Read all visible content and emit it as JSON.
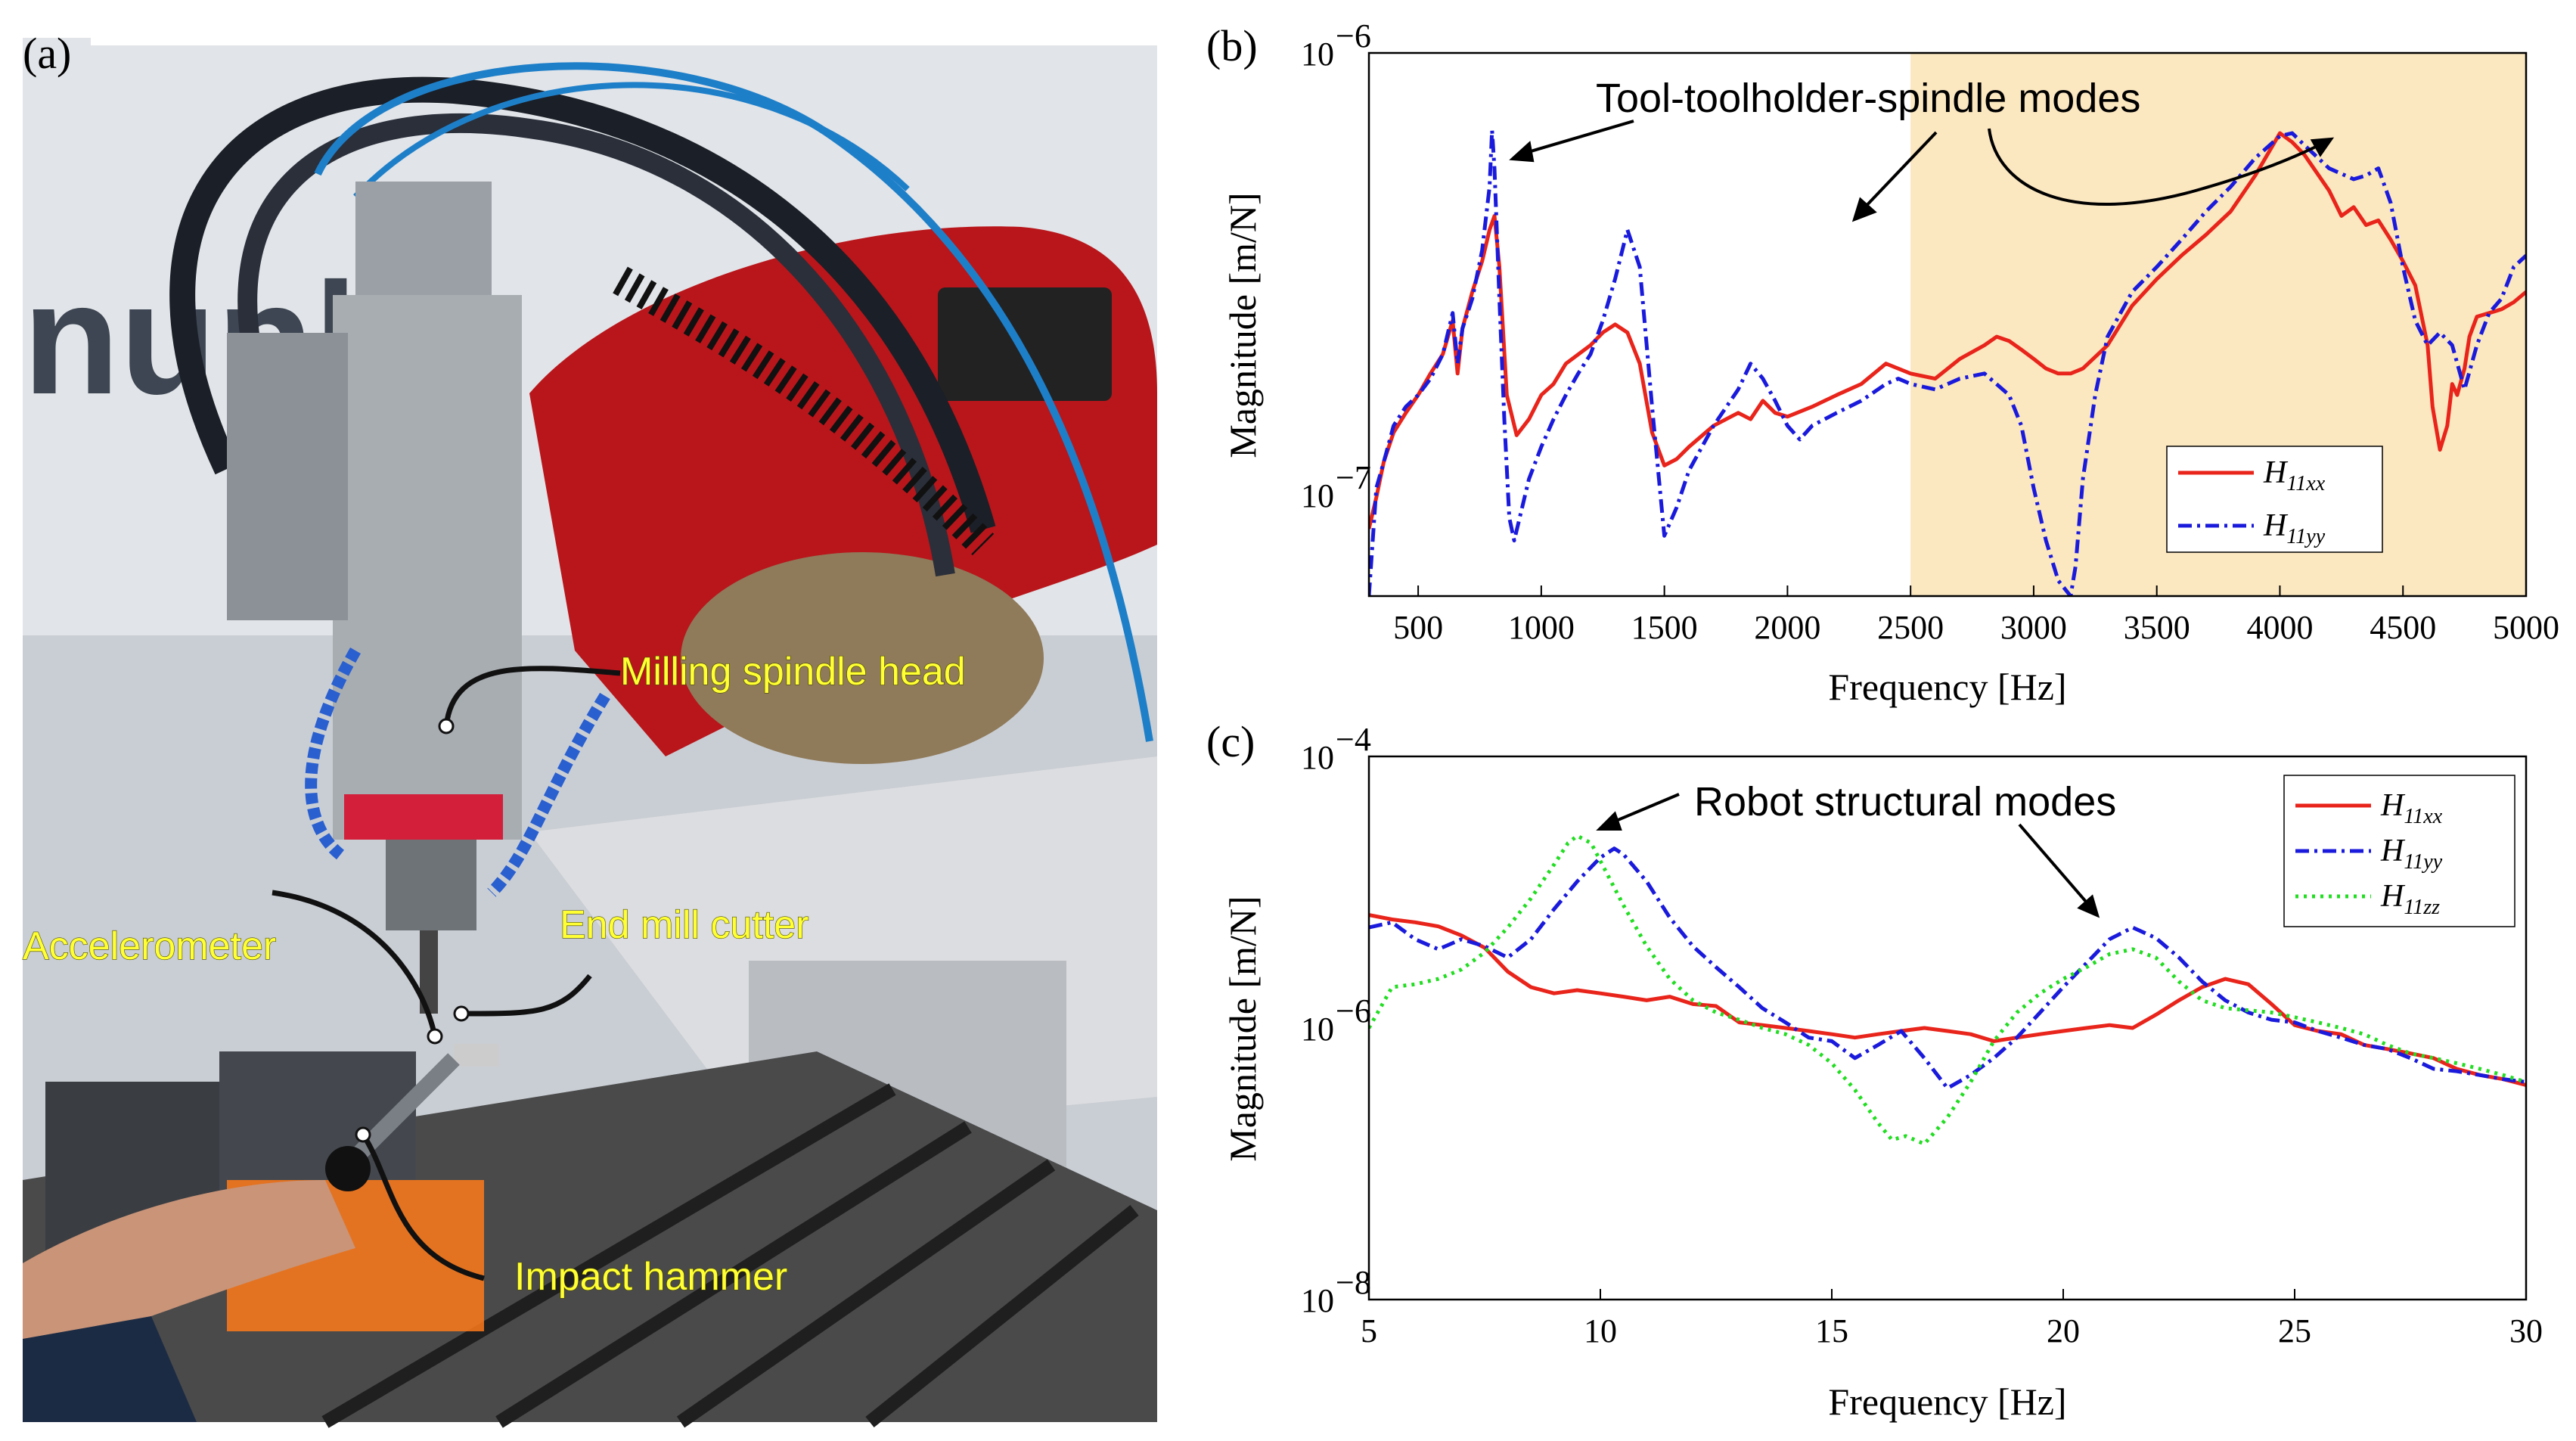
{
  "panel_a": {
    "label": "(a)",
    "callouts": {
      "spindle": "Milling spindle head",
      "accelerometer": "Accelerometer",
      "cutter": "End mill cutter",
      "hammer": "Impact hammer"
    },
    "background_letters": "nunh",
    "colors": {
      "robot": "#b8161b",
      "callout_text": "#ffff33"
    }
  },
  "chart_data": [
    {
      "type": "line",
      "panel_label": "(b)",
      "xlabel": "Frequency [Hz]",
      "ylabel": "Magnitude [m/N]",
      "xlim": [
        300,
        5000
      ],
      "ylim": [
        6e-08,
        1e-06
      ],
      "yscale": "log",
      "xticks": [
        500,
        1000,
        1500,
        2000,
        2500,
        3000,
        3500,
        4000,
        4500,
        5000
      ],
      "ytick_labels": {
        "top": "10",
        "top_exp": "−6",
        "mid": "10",
        "mid_exp": "−7"
      },
      "highlight_region": {
        "x": [
          2500,
          5000
        ],
        "color": "#fbe7c0"
      },
      "annotation": "Tool-toolholder-spindle modes",
      "legend_position": "bottom-right",
      "series": [
        {
          "name": "H",
          "sub": "11xx",
          "color": "#e8241b",
          "style": "solid",
          "x": [
            300,
            330,
            360,
            400,
            450,
            500,
            550,
            600,
            640,
            660,
            680,
            720,
            760,
            790,
            810,
            830,
            860,
            900,
            950,
            1000,
            1050,
            1100,
            1200,
            1250,
            1300,
            1350,
            1400,
            1450,
            1500,
            1550,
            1600,
            1700,
            1800,
            1850,
            1900,
            1950,
            2000,
            2100,
            2200,
            2300,
            2400,
            2500,
            2600,
            2700,
            2800,
            2850,
            2900,
            2950,
            3000,
            3050,
            3100,
            3150,
            3200,
            3300,
            3400,
            3500,
            3600,
            3700,
            3800,
            3900,
            4000,
            4050,
            4100,
            4200,
            4250,
            4300,
            4350,
            4400,
            4450,
            4500,
            4550,
            4600,
            4620,
            4650,
            4680,
            4700,
            4720,
            4750,
            4770,
            4800,
            4850,
            4900,
            4950,
            5000
          ],
          "y": [
            8.5e-08,
            1e-07,
            1.2e-07,
            1.4e-07,
            1.55e-07,
            1.7e-07,
            1.9e-07,
            2.1e-07,
            2.5e-07,
            1.9e-07,
            2.4e-07,
            2.9e-07,
            3.4e-07,
            4e-07,
            4.3e-07,
            3.3e-07,
            1.7e-07,
            1.38e-07,
            1.5e-07,
            1.7e-07,
            1.8e-07,
            2e-07,
            2.2e-07,
            2.35e-07,
            2.45e-07,
            2.35e-07,
            2e-07,
            1.4e-07,
            1.18e-07,
            1.22e-07,
            1.3e-07,
            1.45e-07,
            1.55e-07,
            1.5e-07,
            1.65e-07,
            1.55e-07,
            1.52e-07,
            1.6e-07,
            1.7e-07,
            1.8e-07,
            2e-07,
            1.9e-07,
            1.85e-07,
            2.05e-07,
            2.2e-07,
            2.3e-07,
            2.25e-07,
            2.15e-07,
            2.05e-07,
            1.95e-07,
            1.9e-07,
            1.9e-07,
            1.95e-07,
            2.2e-07,
            2.7e-07,
            3.1e-07,
            3.5e-07,
            3.9e-07,
            4.4e-07,
            5.3e-07,
            6.6e-07,
            6.3e-07,
            5.9e-07,
            4.9e-07,
            4.3e-07,
            4.5e-07,
            4.1e-07,
            4.2e-07,
            3.8e-07,
            3.4e-07,
            3e-07,
            2.2e-07,
            1.6e-07,
            1.28e-07,
            1.45e-07,
            1.8e-07,
            1.7e-07,
            1.95e-07,
            2.3e-07,
            2.55e-07,
            2.6e-07,
            2.65e-07,
            2.75e-07,
            2.9e-07
          ]
        },
        {
          "name": "H",
          "sub": "11yy",
          "color": "#1a1adc",
          "style": "dashdot",
          "x": [
            300,
            330,
            360,
            400,
            450,
            500,
            550,
            600,
            640,
            660,
            680,
            720,
            760,
            790,
            800,
            810,
            830,
            850,
            870,
            890,
            950,
            1000,
            1050,
            1100,
            1150,
            1200,
            1250,
            1300,
            1350,
            1400,
            1450,
            1500,
            1550,
            1600,
            1700,
            1800,
            1850,
            1900,
            1950,
            2000,
            2050,
            2100,
            2200,
            2300,
            2400,
            2450,
            2500,
            2600,
            2700,
            2800,
            2900,
            2950,
            3000,
            3050,
            3100,
            3150,
            3170,
            3200,
            3250,
            3300,
            3400,
            3500,
            3600,
            3700,
            3800,
            3900,
            4000,
            4050,
            4100,
            4200,
            4300,
            4350,
            4400,
            4450,
            4500,
            4550,
            4600,
            4650,
            4700,
            4750,
            4800,
            4850,
            4900,
            4950,
            5000
          ],
          "y": [
            6e-08,
            1.05e-07,
            1.2e-07,
            1.45e-07,
            1.6e-07,
            1.7e-07,
            1.85e-07,
            2.1e-07,
            2.6e-07,
            2e-07,
            2.4e-07,
            2.8e-07,
            3.6e-07,
            5e-07,
            6.7e-07,
            5.5e-07,
            2.8e-07,
            1.5e-07,
            9e-08,
            8e-08,
            1.1e-07,
            1.3e-07,
            1.5e-07,
            1.7e-07,
            1.9e-07,
            2.1e-07,
            2.5e-07,
            3.1e-07,
            4e-07,
            3.3e-07,
            1.6e-07,
            8.2e-08,
            9.5e-08,
            1.15e-07,
            1.45e-07,
            1.75e-07,
            2e-07,
            1.85e-07,
            1.65e-07,
            1.45e-07,
            1.35e-07,
            1.45e-07,
            1.55e-07,
            1.65e-07,
            1.8e-07,
            1.85e-07,
            1.8e-07,
            1.75e-07,
            1.85e-07,
            1.9e-07,
            1.7e-07,
            1.45e-07,
            1.05e-07,
            8e-08,
            6.5e-08,
            6e-08,
            7e-08,
            1.1e-07,
            1.7e-07,
            2.3e-07,
            2.9e-07,
            3.3e-07,
            3.8e-07,
            4.4e-07,
            5e-07,
            5.8e-07,
            6.5e-07,
            6.6e-07,
            6.2e-07,
            5.5e-07,
            5.2e-07,
            5.3e-07,
            5.5e-07,
            4.6e-07,
            3.3e-07,
            2.5e-07,
            2.2e-07,
            2.35e-07,
            2.2e-07,
            1.75e-07,
            2.2e-07,
            2.6e-07,
            2.8e-07,
            3.3e-07,
            3.5e-07
          ]
        }
      ]
    },
    {
      "type": "line",
      "panel_label": "(c)",
      "xlabel": "Frequency [Hz]",
      "ylabel": "Magnitude [m/N]",
      "xlim": [
        5,
        30
      ],
      "ylim": [
        1e-08,
        0.0001
      ],
      "yscale": "log",
      "xticks": [
        5,
        10,
        15,
        20,
        25,
        30
      ],
      "ytick_labels": {
        "top": "10",
        "top_exp": "−4",
        "mid": "10",
        "mid_exp": "−6",
        "bot": "10",
        "bot_exp": "−8"
      },
      "annotation": "Robot structural modes",
      "legend_position": "top-right",
      "series": [
        {
          "name": "H",
          "sub": "11xx",
          "color": "#e8241b",
          "style": "solid",
          "x": [
            5,
            5.5,
            6,
            6.5,
            7,
            7.5,
            8,
            8.5,
            9,
            9.5,
            10,
            10.5,
            11,
            11.5,
            12,
            12.5,
            13,
            13.5,
            14,
            14.5,
            15,
            15.5,
            16,
            16.5,
            17,
            17.5,
            18,
            18.5,
            19,
            19.5,
            20,
            20.5,
            21,
            21.5,
            22,
            22.5,
            23,
            23.5,
            24,
            24.5,
            25,
            25.5,
            26,
            26.5,
            27,
            27.5,
            28,
            28.5,
            29,
            29.5,
            30
          ],
          "y": [
            6.8e-06,
            6.3e-06,
            6e-06,
            5.6e-06,
            4.8e-06,
            3.9e-06,
            2.6e-06,
            2e-06,
            1.8e-06,
            1.9e-06,
            1.8e-06,
            1.7e-06,
            1.6e-06,
            1.7e-06,
            1.5e-06,
            1.45e-06,
            1.1e-06,
            1.05e-06,
            1e-06,
            9.5e-07,
            9e-07,
            8.5e-07,
            9e-07,
            9.5e-07,
            1e-06,
            9.5e-07,
            9e-07,
            8e-07,
            8.5e-07,
            9e-07,
            9.5e-07,
            1e-06,
            1.05e-06,
            1e-06,
            1.25e-06,
            1.6e-06,
            2e-06,
            2.3e-06,
            2.1e-06,
            1.5e-06,
            1.05e-06,
            9.5e-07,
            9e-07,
            7.5e-07,
            7e-07,
            6.5e-07,
            6e-07,
            5e-07,
            4.5e-07,
            4.2e-07,
            3.8e-07
          ]
        },
        {
          "name": "H",
          "sub": "11yy",
          "color": "#1a1adc",
          "style": "dashdot",
          "x": [
            5,
            5.5,
            6,
            6.5,
            7,
            7.5,
            8,
            8.5,
            9,
            9.5,
            10,
            10.3,
            10.5,
            11,
            11.5,
            12,
            12.5,
            13,
            13.5,
            14,
            14.5,
            15,
            15.5,
            16,
            16.5,
            17,
            17.5,
            18,
            18.5,
            19,
            19.5,
            20,
            20.5,
            21,
            21.5,
            22,
            22.5,
            23,
            23.5,
            24,
            24.5,
            25,
            25.5,
            26,
            26.5,
            27,
            27.5,
            28,
            28.5,
            29,
            29.5,
            30
          ],
          "y": [
            5.5e-06,
            6e-06,
            4.5e-06,
            3.8e-06,
            4.5e-06,
            4e-06,
            3.3e-06,
            4.5e-06,
            7.5e-06,
            1.2e-05,
            1.8e-05,
            2.1e-05,
            1.9e-05,
            1.2e-05,
            6.5e-06,
            4e-06,
            2.8e-06,
            2e-06,
            1.4e-06,
            1.1e-06,
            8.5e-07,
            8e-07,
            6e-07,
            7.5e-07,
            9.5e-07,
            6e-07,
            3.6e-07,
            4.5e-07,
            6e-07,
            8.5e-07,
            1.3e-06,
            2e-06,
            3e-06,
            4.5e-06,
            5.5e-06,
            4.6e-06,
            3.3e-06,
            2.2e-06,
            1.6e-06,
            1.3e-06,
            1.15e-06,
            1.1e-06,
            9.5e-07,
            8.5e-07,
            7.5e-07,
            7e-07,
            6e-07,
            5e-07,
            4.8e-07,
            4.5e-07,
            4.2e-07,
            4e-07
          ]
        },
        {
          "name": "H",
          "sub": "11zz",
          "color": "#22dd22",
          "style": "dotted",
          "x": [
            5,
            5.5,
            6,
            6.5,
            7,
            7.5,
            8,
            8.5,
            9,
            9.3,
            9.5,
            9.8,
            10,
            10.5,
            11,
            11.5,
            12,
            12.5,
            13,
            13.5,
            14,
            14.5,
            15,
            15.5,
            16,
            16.3,
            16.6,
            17,
            17.5,
            18,
            18.5,
            19,
            19.5,
            20,
            20.5,
            21,
            21.5,
            22,
            22.5,
            23,
            23.5,
            24,
            24.5,
            25,
            25.5,
            26,
            26.5,
            27,
            27.5,
            28,
            28.5,
            29,
            29.5,
            30
          ],
          "y": [
            1e-06,
            2e-06,
            2.1e-06,
            2.3e-06,
            2.7e-06,
            3.6e-06,
            5.5e-06,
            9e-06,
            1.6e-05,
            2.3e-05,
            2.6e-05,
            2.3e-05,
            1.7e-05,
            8e-06,
            4e-06,
            2.3e-06,
            1.6e-06,
            1.3e-06,
            1.15e-06,
            1e-06,
            9e-07,
            7.5e-07,
            5.5e-07,
            3.5e-07,
            2e-07,
            1.5e-07,
            1.6e-07,
            1.4e-07,
            2.2e-07,
            4e-07,
            8e-07,
            1.3e-06,
            1.8e-06,
            2.3e-06,
            2.8e-06,
            3.5e-06,
            3.8e-06,
            3.3e-06,
            2.2e-06,
            1.6e-06,
            1.4e-06,
            1.35e-06,
            1.3e-06,
            1.2e-06,
            1.1e-06,
            1e-06,
            9e-07,
            7.5e-07,
            6.5e-07,
            6e-07,
            5.5e-07,
            5e-07,
            4.5e-07,
            4e-07
          ]
        }
      ]
    }
  ]
}
